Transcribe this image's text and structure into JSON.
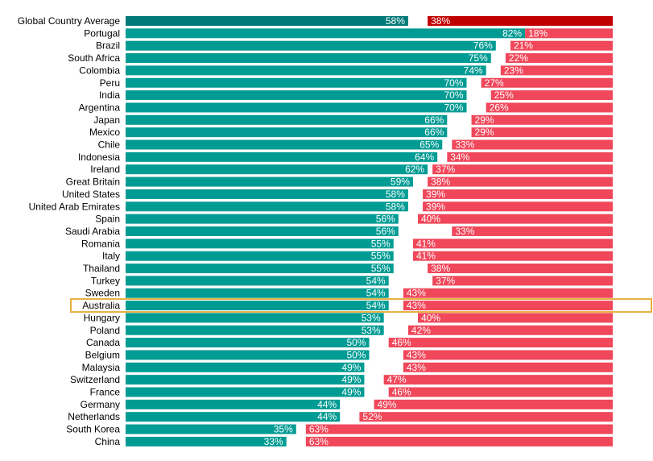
{
  "chart_data": {
    "type": "bar",
    "orientation": "horizontal-diverging",
    "title": "",
    "xlabel": "",
    "ylabel": "",
    "xlim": [
      0,
      100
    ],
    "grid": false,
    "legend": "none",
    "highlighted_category": "Australia",
    "categories": [
      "Global Country Average",
      "Portugal",
      "Brazil",
      "South Africa",
      "Colombia",
      "Peru",
      "India",
      "Argentina",
      "Japan",
      "Mexico",
      "Chile",
      "Indonesia",
      "Ireland",
      "Great Britain",
      "United States",
      "United Arab Emirates",
      "Spain",
      "Saudi Arabia",
      "Romania",
      "Italy",
      "Thailand",
      "Turkey",
      "Sweden",
      "Australia",
      "Hungary",
      "Poland",
      "Canada",
      "Belgium",
      "Malaysia",
      "Switzerland",
      "France",
      "Germany",
      "Netherlands",
      "South Korea",
      "China"
    ],
    "series": [
      {
        "name": "teal",
        "color": "#009b93",
        "highlight_color": "#007a78",
        "values": [
          58,
          82,
          76,
          75,
          74,
          70,
          70,
          70,
          66,
          66,
          65,
          64,
          62,
          59,
          58,
          58,
          56,
          56,
          55,
          55,
          55,
          54,
          54,
          54,
          53,
          53,
          50,
          50,
          49,
          49,
          49,
          44,
          44,
          35,
          33
        ],
        "labels": [
          "58%",
          "82%",
          "76%",
          "75%",
          "74%",
          "70%",
          "70%",
          "70%",
          "66%",
          "66%",
          "65%",
          "64%",
          "62%",
          "59%",
          "58%",
          "58%",
          "56%",
          "56%",
          "55%",
          "55%",
          "55%",
          "54%",
          "54%",
          "54%",
          "53%",
          "53%",
          "50%",
          "50%",
          "49%",
          "49%",
          "49%",
          "44%",
          "44%",
          "35%",
          "33%"
        ]
      },
      {
        "name": "red",
        "color": "#f0475a",
        "highlight_color": "#c00000",
        "values": [
          38,
          18,
          21,
          22,
          23,
          27,
          25,
          26,
          29,
          29,
          33,
          34,
          37,
          38,
          39,
          39,
          40,
          33,
          41,
          41,
          38,
          37,
          43,
          43,
          40,
          42,
          46,
          43,
          43,
          47,
          46,
          49,
          52,
          63,
          63
        ],
        "labels": [
          "38%",
          "18%",
          "21%",
          "22%",
          "23%",
          "27%",
          "25%",
          "26%",
          "29%",
          "29%",
          "33%",
          "34%",
          "37%",
          "38%",
          "39%",
          "39%",
          "40%",
          "33%",
          "41%",
          "41%",
          "38%",
          "37%",
          "43%",
          "43%",
          "40%",
          "42%",
          "46%",
          "43%",
          "43%",
          "47%",
          "46%",
          "49%",
          "52%",
          "63%",
          "63%"
        ]
      }
    ]
  }
}
